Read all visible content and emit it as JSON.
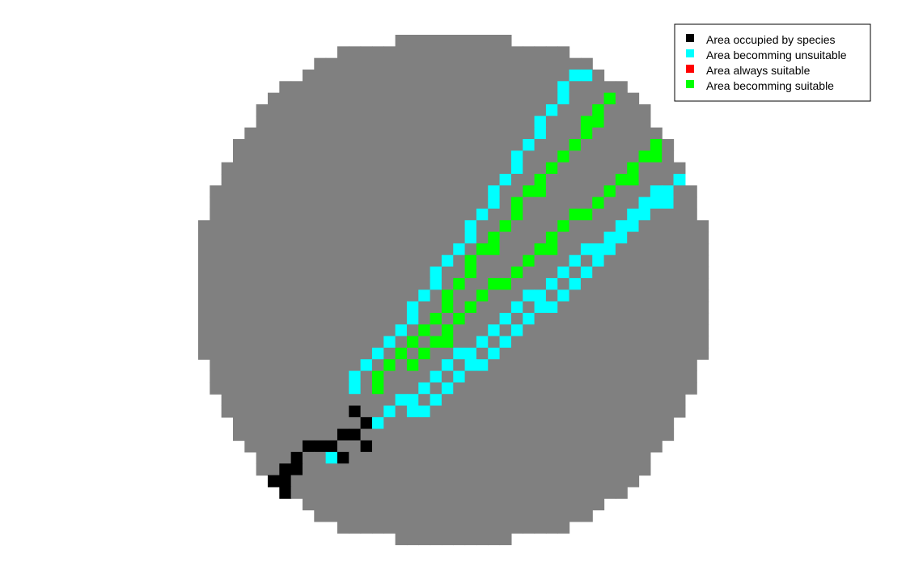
{
  "colors": {
    "background": "#808080",
    "occupied": "#000000",
    "unsuitable": "#00ffff",
    "always": "#ff0000",
    "suitable": "#00ff00"
  },
  "chart_data": {
    "type": "heatmap",
    "grid_size": 44,
    "legend": {
      "placement": "top-right",
      "entries": [
        {
          "key": "occupied",
          "label": "Area occupied by species"
        },
        {
          "key": "unsuitable",
          "label": "Area becomming unsuitable"
        },
        {
          "key": "always",
          "label": "Area always suitable"
        },
        {
          "key": "suitable",
          "label": "Area becomming suitable"
        }
      ]
    },
    "disc_row_spans": [
      [
        17,
        26
      ],
      [
        12,
        31
      ],
      [
        10,
        33
      ],
      [
        9,
        34
      ],
      [
        7,
        36
      ],
      [
        6,
        37
      ],
      [
        5,
        38
      ],
      [
        5,
        38
      ],
      [
        4,
        39
      ],
      [
        3,
        40
      ],
      [
        3,
        40
      ],
      [
        2,
        41
      ],
      [
        2,
        41
      ],
      [
        1,
        42
      ],
      [
        1,
        42
      ],
      [
        1,
        42
      ],
      [
        0,
        43
      ],
      [
        0,
        43
      ],
      [
        0,
        43
      ],
      [
        0,
        43
      ],
      [
        0,
        43
      ],
      [
        0,
        43
      ],
      [
        0,
        43
      ],
      [
        0,
        43
      ],
      [
        0,
        43
      ],
      [
        0,
        43
      ],
      [
        0,
        43
      ],
      [
        0,
        43
      ],
      [
        1,
        42
      ],
      [
        1,
        42
      ],
      [
        1,
        42
      ],
      [
        2,
        41
      ],
      [
        2,
        41
      ],
      [
        3,
        40
      ],
      [
        3,
        40
      ],
      [
        4,
        39
      ],
      [
        5,
        38
      ],
      [
        5,
        38
      ],
      [
        6,
        37
      ],
      [
        7,
        36
      ],
      [
        9,
        34
      ],
      [
        10,
        33
      ],
      [
        12,
        31
      ],
      [
        17,
        26
      ]
    ],
    "cells": {
      "occupied": [
        [
          10,
          35
        ],
        [
          13,
          32
        ],
        [
          14,
          33
        ],
        [
          12,
          34
        ],
        [
          11,
          35
        ],
        [
          12,
          36
        ],
        [
          7,
          37
        ],
        [
          8,
          36
        ],
        [
          9,
          35
        ],
        [
          8,
          37
        ],
        [
          6,
          38
        ],
        [
          7,
          38
        ],
        [
          7,
          39
        ],
        [
          13,
          34
        ],
        [
          14,
          35
        ]
      ],
      "unsuitable": [
        [
          33,
          3
        ],
        [
          32,
          3
        ],
        [
          31,
          4
        ],
        [
          31,
          5
        ],
        [
          30,
          6
        ],
        [
          29,
          7
        ],
        [
          29,
          8
        ],
        [
          28,
          9
        ],
        [
          27,
          10
        ],
        [
          27,
          11
        ],
        [
          26,
          12
        ],
        [
          25,
          13
        ],
        [
          25,
          14
        ],
        [
          24,
          15
        ],
        [
          23,
          16
        ],
        [
          23,
          17
        ],
        [
          22,
          18
        ],
        [
          21,
          19
        ],
        [
          20,
          20
        ],
        [
          20,
          21
        ],
        [
          19,
          22
        ],
        [
          18,
          23
        ],
        [
          18,
          24
        ],
        [
          17,
          25
        ],
        [
          16,
          26
        ],
        [
          15,
          27
        ],
        [
          14,
          28
        ],
        [
          13,
          29
        ],
        [
          13,
          30
        ],
        [
          41,
          12
        ],
        [
          40,
          13
        ],
        [
          39,
          13
        ],
        [
          38,
          14
        ],
        [
          37,
          15
        ],
        [
          36,
          16
        ],
        [
          35,
          17
        ],
        [
          34,
          18
        ],
        [
          33,
          18
        ],
        [
          32,
          19
        ],
        [
          31,
          20
        ],
        [
          30,
          21
        ],
        [
          29,
          22
        ],
        [
          28,
          22
        ],
        [
          27,
          23
        ],
        [
          26,
          24
        ],
        [
          25,
          25
        ],
        [
          24,
          26
        ],
        [
          23,
          27
        ],
        [
          22,
          27
        ],
        [
          21,
          28
        ],
        [
          20,
          29
        ],
        [
          19,
          30
        ],
        [
          18,
          31
        ],
        [
          17,
          31
        ],
        [
          16,
          32
        ],
        [
          15,
          33
        ],
        [
          40,
          14
        ],
        [
          39,
          14
        ],
        [
          38,
          15
        ],
        [
          37,
          16
        ],
        [
          36,
          17
        ],
        [
          35,
          18
        ],
        [
          34,
          19
        ],
        [
          33,
          20
        ],
        [
          32,
          21
        ],
        [
          31,
          22
        ],
        [
          30,
          23
        ],
        [
          29,
          23
        ],
        [
          28,
          24
        ],
        [
          27,
          25
        ],
        [
          26,
          26
        ],
        [
          25,
          27
        ],
        [
          24,
          28
        ],
        [
          23,
          28
        ],
        [
          22,
          29
        ],
        [
          21,
          30
        ],
        [
          20,
          31
        ],
        [
          19,
          32
        ],
        [
          18,
          32
        ],
        [
          12,
          34
        ],
        [
          11,
          36
        ],
        [
          6,
          39
        ]
      ],
      "suitable": [
        [
          35,
          5
        ],
        [
          34,
          6
        ],
        [
          34,
          7
        ],
        [
          33,
          7
        ],
        [
          33,
          8
        ],
        [
          32,
          9
        ],
        [
          31,
          10
        ],
        [
          30,
          11
        ],
        [
          29,
          12
        ],
        [
          29,
          13
        ],
        [
          28,
          13
        ],
        [
          27,
          14
        ],
        [
          27,
          15
        ],
        [
          26,
          16
        ],
        [
          25,
          17
        ],
        [
          25,
          18
        ],
        [
          24,
          18
        ],
        [
          23,
          19
        ],
        [
          23,
          20
        ],
        [
          22,
          21
        ],
        [
          21,
          22
        ],
        [
          21,
          23
        ],
        [
          20,
          24
        ],
        [
          19,
          25
        ],
        [
          18,
          26
        ],
        [
          17,
          27
        ],
        [
          16,
          28
        ],
        [
          15,
          29
        ],
        [
          15,
          30
        ],
        [
          39,
          9
        ],
        [
          39,
          10
        ],
        [
          38,
          10
        ],
        [
          37,
          11
        ],
        [
          37,
          12
        ],
        [
          36,
          12
        ],
        [
          35,
          13
        ],
        [
          34,
          14
        ],
        [
          33,
          15
        ],
        [
          32,
          15
        ],
        [
          31,
          16
        ],
        [
          30,
          17
        ],
        [
          30,
          18
        ],
        [
          29,
          18
        ],
        [
          28,
          19
        ],
        [
          27,
          20
        ],
        [
          26,
          21
        ],
        [
          25,
          21
        ],
        [
          24,
          22
        ],
        [
          23,
          23
        ],
        [
          22,
          24
        ],
        [
          21,
          25
        ],
        [
          21,
          26
        ],
        [
          20,
          26
        ],
        [
          19,
          27
        ],
        [
          18,
          28
        ]
      ]
    }
  }
}
